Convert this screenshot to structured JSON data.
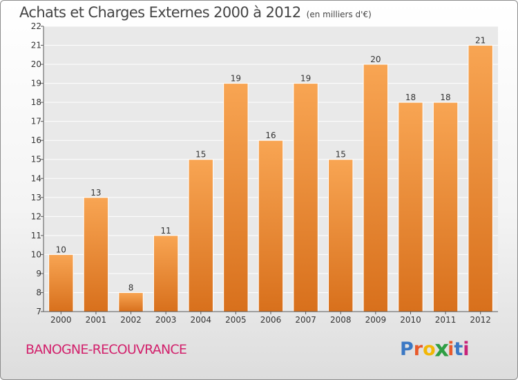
{
  "chart_data": {
    "type": "bar",
    "title": "Achats et Charges Externes 2000 à 2012",
    "unit_note": "(en milliers d'€)",
    "categories": [
      "2000",
      "2001",
      "2002",
      "2003",
      "2004",
      "2005",
      "2006",
      "2007",
      "2008",
      "2009",
      "2010",
      "2011",
      "2012"
    ],
    "values": [
      10,
      13,
      8,
      11,
      15,
      19,
      16,
      19,
      15,
      20,
      18,
      18,
      21
    ],
    "value_labels": [
      "10",
      "13",
      "8",
      "11",
      "15",
      "19",
      "16",
      "19",
      "15",
      "20",
      "18",
      "18",
      "21"
    ],
    "ylim": [
      7,
      22
    ],
    "yticks": [
      "7",
      "8",
      "9",
      "10",
      "11",
      "12",
      "13",
      "14",
      "15",
      "16",
      "17",
      "18",
      "19",
      "20",
      "21",
      "22"
    ],
    "grid": true,
    "bar_color": "#f08a2c"
  },
  "footer": {
    "location": "BANOGNE-RECOUVRANCE",
    "brand_letters": [
      "P",
      "r",
      "o",
      "x",
      "i",
      "t",
      "i"
    ],
    "brand_colors": [
      "#3b78c4",
      "#e85a2b",
      "#f2b705",
      "#2f9e44",
      "#e85a2b",
      "#3b78c4",
      "#c7247a"
    ]
  }
}
